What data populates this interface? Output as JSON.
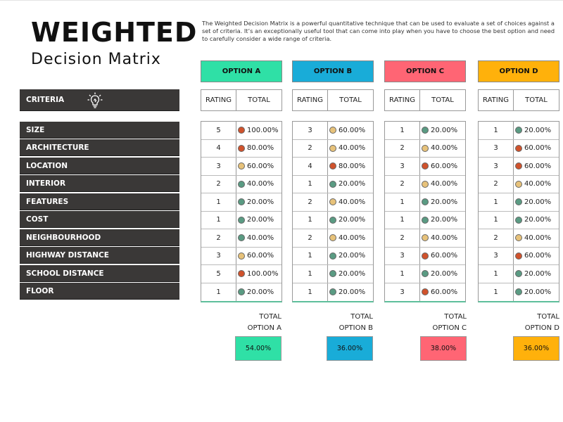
{
  "title": {
    "main": "WEIGHTED",
    "sub": "Decision Matrix"
  },
  "description": "The Weighted Decision Matrix is a powerful quantitative technique that can be used to evaluate a set of choices against a set of criteria. It’s an exceptionally useful tool that can come into play when you have to choose the best option and need to carefully consider a wide range of criteria.",
  "criteria_header": "CRITERIA",
  "criteria": [
    "SIZE",
    "ARCHITECTURE",
    "LOCATION",
    "INTERIOR",
    "FEATURES",
    "COST",
    "NEIGHBOURHOOD",
    "HIGHWAY DISTANCE",
    "SCHOOL DISTANCE",
    "FLOOR"
  ],
  "colors": {
    "option_a": "#2fe0a6",
    "option_b": "#19acd8",
    "option_c": "#ff6574",
    "option_d": "#ffb10b",
    "dot_green": "#5a9b83",
    "dot_yellow": "#e7c27a",
    "dot_red": "#d0522c"
  },
  "options": [
    {
      "name": "OPTION A",
      "rating_label": "RATING",
      "total_label": "TOTAL",
      "total_caption_1": "TOTAL",
      "total_caption_2": "OPTION A",
      "total_value": "54.00%",
      "rows": [
        {
          "rating": "5",
          "total": "100.00%",
          "dot": "red"
        },
        {
          "rating": "4",
          "total": "80.00%",
          "dot": "red"
        },
        {
          "rating": "3",
          "total": "60.00%",
          "dot": "yellow"
        },
        {
          "rating": "2",
          "total": "40.00%",
          "dot": "green"
        },
        {
          "rating": "1",
          "total": "20.00%",
          "dot": "green"
        },
        {
          "rating": "1",
          "total": "20.00%",
          "dot": "green"
        },
        {
          "rating": "2",
          "total": "40.00%",
          "dot": "green"
        },
        {
          "rating": "3",
          "total": "60.00%",
          "dot": "yellow"
        },
        {
          "rating": "5",
          "total": "100.00%",
          "dot": "red"
        },
        {
          "rating": "1",
          "total": "20.00%",
          "dot": "green"
        }
      ]
    },
    {
      "name": "OPTION B",
      "rating_label": "RATING",
      "total_label": "TOTAL",
      "total_caption_1": "TOTAL",
      "total_caption_2": "OPTION B",
      "total_value": "36.00%",
      "rows": [
        {
          "rating": "3",
          "total": "60.00%",
          "dot": "yellow"
        },
        {
          "rating": "2",
          "total": "40.00%",
          "dot": "yellow"
        },
        {
          "rating": "4",
          "total": "80.00%",
          "dot": "red"
        },
        {
          "rating": "1",
          "total": "20.00%",
          "dot": "green"
        },
        {
          "rating": "2",
          "total": "40.00%",
          "dot": "yellow"
        },
        {
          "rating": "1",
          "total": "20.00%",
          "dot": "green"
        },
        {
          "rating": "2",
          "total": "40.00%",
          "dot": "yellow"
        },
        {
          "rating": "1",
          "total": "20.00%",
          "dot": "green"
        },
        {
          "rating": "1",
          "total": "20.00%",
          "dot": "green"
        },
        {
          "rating": "1",
          "total": "20.00%",
          "dot": "green"
        }
      ]
    },
    {
      "name": "OPTION C",
      "rating_label": "RATING",
      "total_label": "TOTAL",
      "total_caption_1": "TOTAL",
      "total_caption_2": "OPTION C",
      "total_value": "38.00%",
      "rows": [
        {
          "rating": "1",
          "total": "20.00%",
          "dot": "green"
        },
        {
          "rating": "2",
          "total": "40.00%",
          "dot": "yellow"
        },
        {
          "rating": "3",
          "total": "60.00%",
          "dot": "red"
        },
        {
          "rating": "2",
          "total": "40.00%",
          "dot": "yellow"
        },
        {
          "rating": "1",
          "total": "20.00%",
          "dot": "green"
        },
        {
          "rating": "1",
          "total": "20.00%",
          "dot": "green"
        },
        {
          "rating": "2",
          "total": "40.00%",
          "dot": "yellow"
        },
        {
          "rating": "3",
          "total": "60.00%",
          "dot": "red"
        },
        {
          "rating": "1",
          "total": "20.00%",
          "dot": "green"
        },
        {
          "rating": "3",
          "total": "60.00%",
          "dot": "red"
        }
      ]
    },
    {
      "name": "OPTION D",
      "rating_label": "RATING",
      "total_label": "TOTAL",
      "total_caption_1": "TOTAL",
      "total_caption_2": "OPTION D",
      "total_value": "36.00%",
      "rows": [
        {
          "rating": "1",
          "total": "20.00%",
          "dot": "green"
        },
        {
          "rating": "3",
          "total": "60.00%",
          "dot": "red"
        },
        {
          "rating": "3",
          "total": "60.00%",
          "dot": "red"
        },
        {
          "rating": "2",
          "total": "40.00%",
          "dot": "yellow"
        },
        {
          "rating": "1",
          "total": "20.00%",
          "dot": "green"
        },
        {
          "rating": "1",
          "total": "20.00%",
          "dot": "green"
        },
        {
          "rating": "2",
          "total": "40.00%",
          "dot": "yellow"
        },
        {
          "rating": "3",
          "total": "60.00%",
          "dot": "red"
        },
        {
          "rating": "1",
          "total": "20.00%",
          "dot": "green"
        },
        {
          "rating": "1",
          "total": "20.00%",
          "dot": "green"
        }
      ]
    }
  ]
}
